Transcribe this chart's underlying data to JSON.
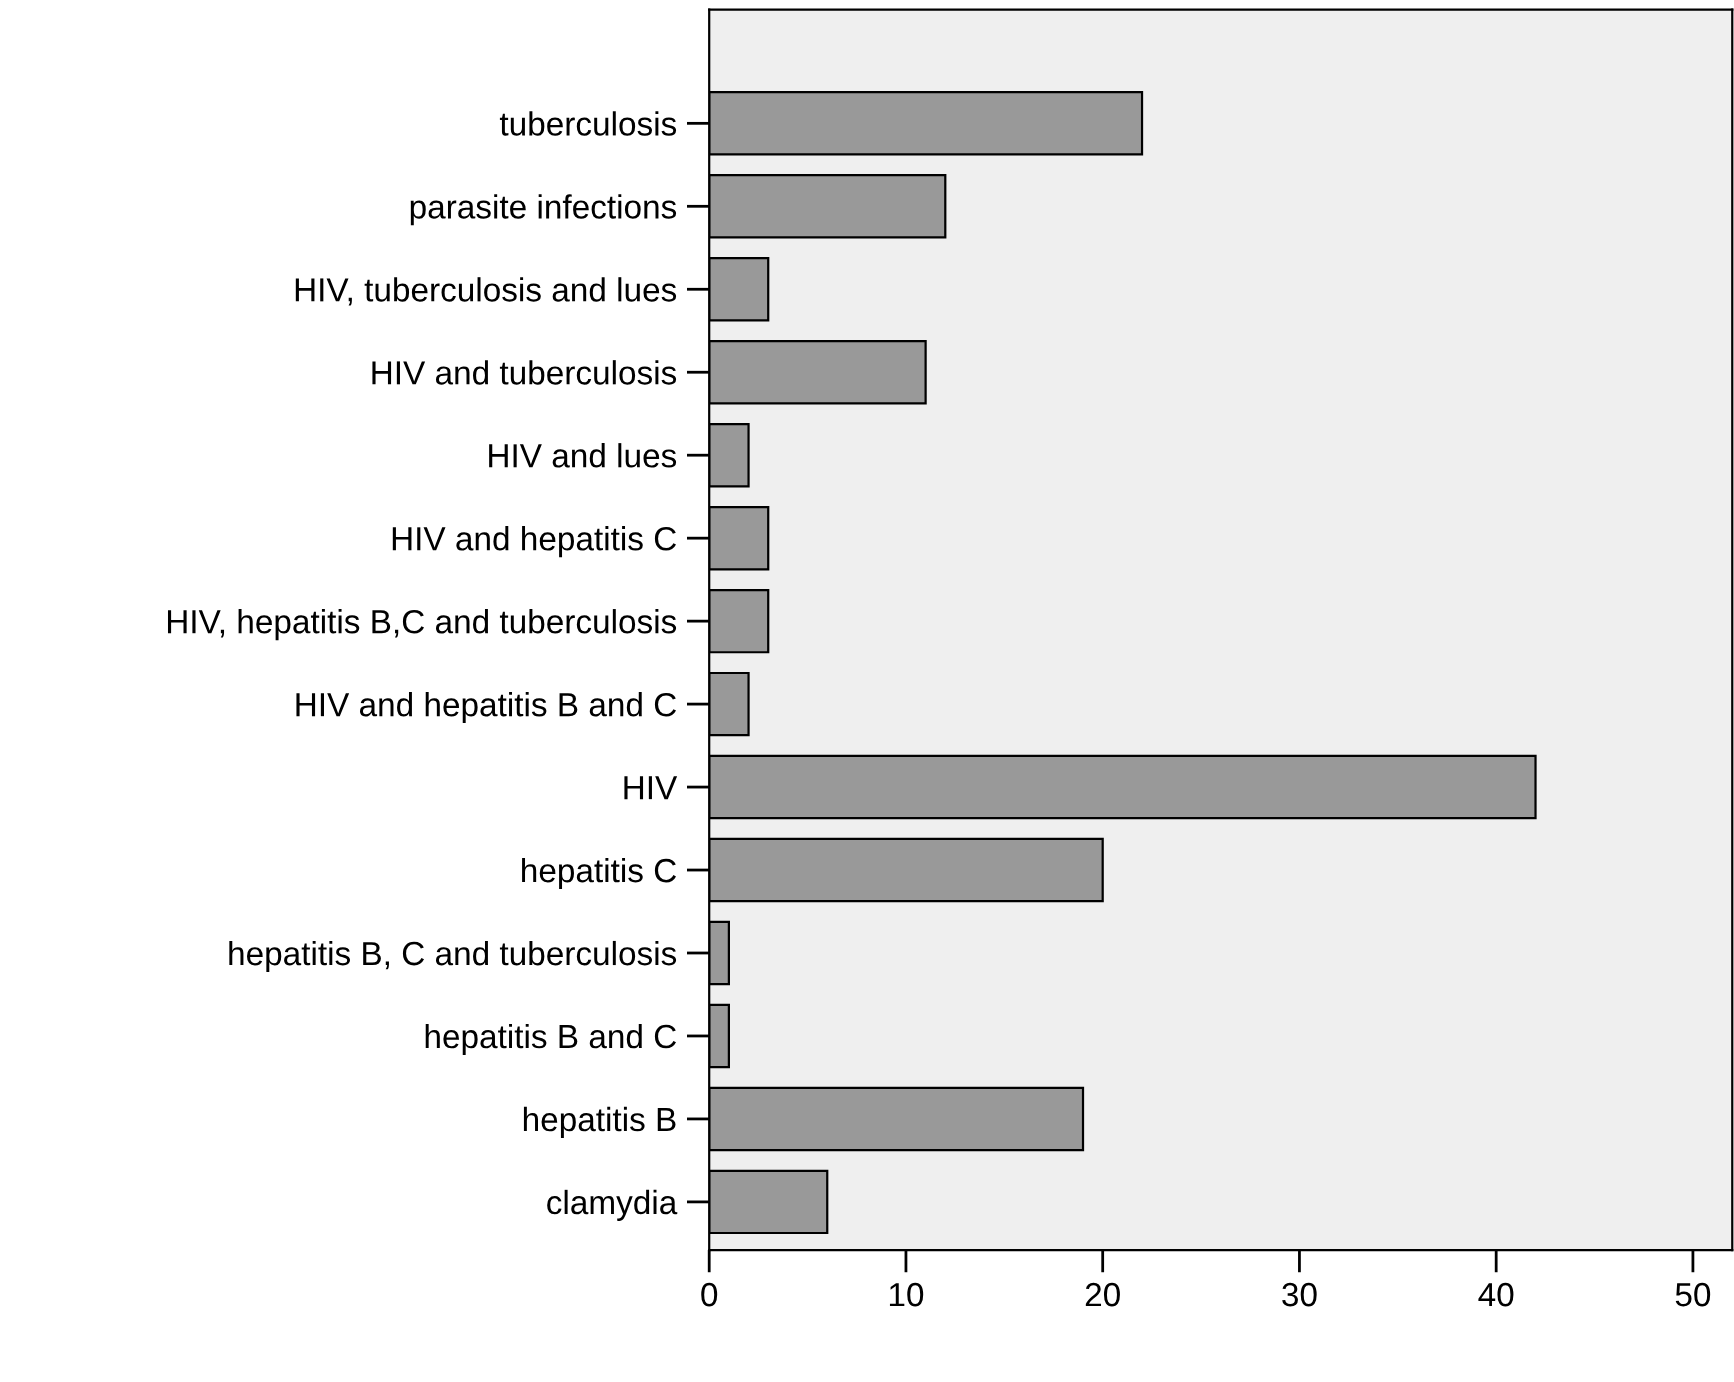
{
  "chart_data": {
    "type": "bar",
    "orientation": "horizontal",
    "categories": [
      "tuberculosis",
      "parasite infections",
      "HIV, tuberculosis and lues",
      "HIV and tuberculosis",
      "HIV and lues",
      "HIV and hepatitis C",
      "HIV, hepatitis B,C and tuberculosis",
      "HIV and hepatitis B and C",
      "HIV",
      "hepatitis C",
      "hepatitis B, C and tuberculosis",
      "hepatitis B and C",
      "hepatitis B",
      "clamydia"
    ],
    "values": [
      22,
      12,
      3,
      11,
      2,
      3,
      3,
      2,
      42,
      20,
      1,
      1,
      19,
      6
    ],
    "color": "#999999",
    "xlim": [
      0,
      52
    ],
    "xticks": [
      0,
      10,
      20,
      30,
      40,
      50
    ],
    "grid": false,
    "legend": false
  }
}
